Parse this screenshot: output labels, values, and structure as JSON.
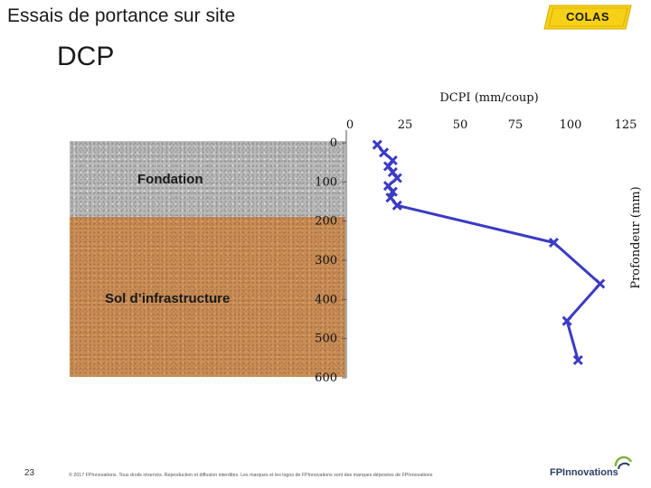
{
  "slide": {
    "title": "Essais de portance sur site",
    "subtitle": "DCP",
    "page_number": "23",
    "footer": "© 2017 FPInnovations. Tous droits réservés. Reproduction et diffusion interdites. Les marques et les logos de FPInnovations sont des marques déposées de FPInnovations",
    "logo_text": "COLAS",
    "fp_logo_text": "FPInnovations"
  },
  "layers": {
    "foundation_label": "Fondation",
    "subgrade_label": "Sol d’infrastructure"
  },
  "colors": {
    "series": "#3b3bc4",
    "logo_yellow": "#f7d117",
    "foundation": "#b9b9b9",
    "subgrade": "#c98d57"
  },
  "chart_data": {
    "type": "line",
    "title": "DCPI (mm/coup)",
    "xlabel": "DCPI (mm/coup)",
    "ylabel": "Profondeur (mm)",
    "xlim": [
      0,
      125
    ],
    "ylim": [
      0,
      600
    ],
    "x_ticks": [
      "0",
      "25",
      "50",
      "75",
      "100",
      "125"
    ],
    "y_ticks": [
      "0",
      "100",
      "200",
      "300",
      "400",
      "500",
      "600"
    ],
    "y_inverted": true,
    "x_axis_position": "top",
    "series": [
      {
        "marker": "x",
        "points": [
          {
            "x": 12,
            "y": 5
          },
          {
            "x": 15,
            "y": 25
          },
          {
            "x": 19,
            "y": 45
          },
          {
            "x": 17,
            "y": 60
          },
          {
            "x": 19,
            "y": 75
          },
          {
            "x": 21,
            "y": 90
          },
          {
            "x": 17,
            "y": 110
          },
          {
            "x": 19,
            "y": 125
          },
          {
            "x": 18,
            "y": 140
          },
          {
            "x": 21,
            "y": 160
          },
          {
            "x": 92,
            "y": 255
          },
          {
            "x": 113,
            "y": 360
          },
          {
            "x": 98,
            "y": 455
          },
          {
            "x": 103,
            "y": 555
          }
        ]
      }
    ]
  }
}
